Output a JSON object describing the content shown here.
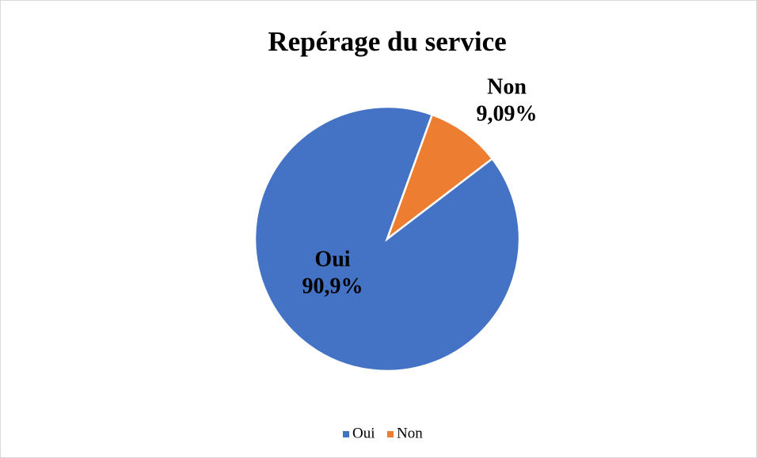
{
  "chart_data": {
    "type": "pie",
    "title": "Repérage du service",
    "categories": [
      "Oui",
      "Non"
    ],
    "values": [
      90.9,
      9.09
    ],
    "value_labels": [
      "90,9%",
      "9,09%"
    ],
    "colors": [
      "#4472c4",
      "#ed7d31"
    ],
    "legend": "bottom"
  }
}
